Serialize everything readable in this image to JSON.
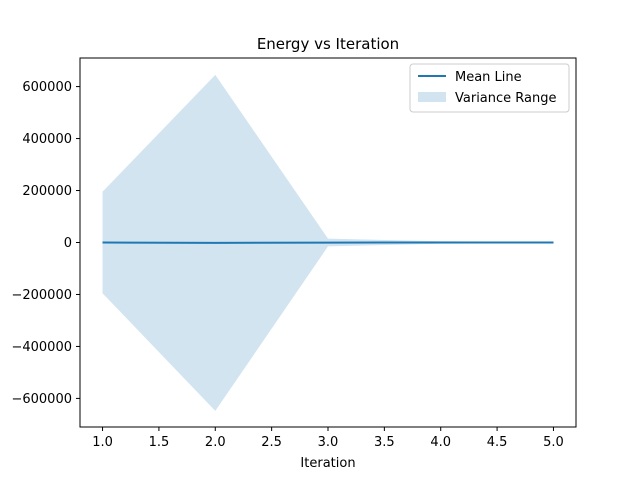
{
  "chart_data": {
    "type": "line",
    "title": "Energy vs Iteration",
    "xlabel": "Iteration",
    "ylabel": "",
    "xlim": [
      0.8,
      5.2
    ],
    "ylim": [
      -710000,
      710000
    ],
    "x_ticks": [
      1.0,
      1.5,
      2.0,
      2.5,
      3.0,
      3.5,
      4.0,
      4.5,
      5.0
    ],
    "x_tick_labels": [
      "1.0",
      "1.5",
      "2.0",
      "2.5",
      "3.0",
      "3.5",
      "4.0",
      "4.5",
      "5.0"
    ],
    "y_ticks": [
      -600000,
      -400000,
      -200000,
      0,
      200000,
      400000,
      600000
    ],
    "y_tick_labels": [
      "−600000",
      "−400000",
      "−200000",
      "0",
      "200000",
      "400000",
      "600000"
    ],
    "grid": false,
    "legend_position": "top-right",
    "series": [
      {
        "name": "Mean Line",
        "kind": "line",
        "color": "#1f77b4",
        "x": [
          1,
          2,
          3,
          4,
          5
        ],
        "y": [
          0,
          -1500,
          -500,
          0,
          0
        ]
      }
    ],
    "bands": [
      {
        "name": "Variance Range",
        "color": "#1f77b4",
        "alpha": 0.2,
        "x": [
          1,
          2,
          3,
          4,
          5
        ],
        "lower": [
          -195000,
          -648000,
          -15000,
          -5000,
          -2000
        ],
        "upper": [
          195000,
          645000,
          15000,
          5000,
          2000
        ]
      }
    ]
  }
}
